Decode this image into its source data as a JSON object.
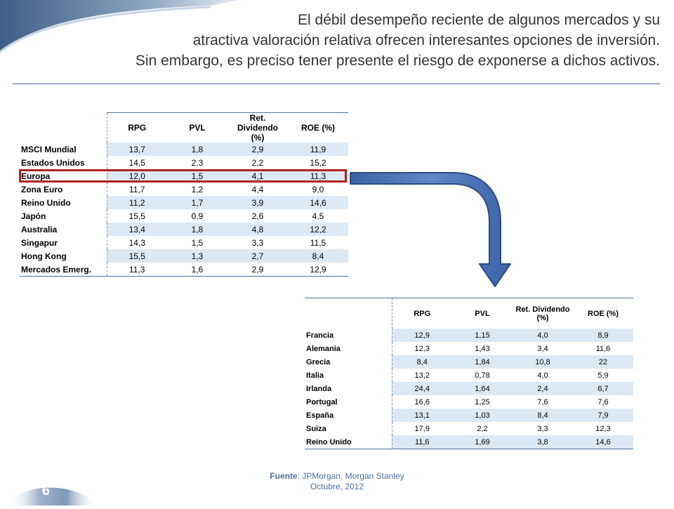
{
  "title": {
    "line1": "El débil desempeño reciente de algunos mercados y su",
    "line2": "atractiva valoración relativa ofrecen interesantes opciones de inversión.",
    "line3": "Sin embargo, es preciso tener presente el riesgo de exponerse a dichos activos."
  },
  "table_markets": {
    "headers": [
      "RPG",
      "PVL",
      "Ret. Dividendo (%)",
      "ROE (%)"
    ],
    "rows": [
      {
        "name": "MSCI Mundial",
        "values": [
          "13,7",
          "1,8",
          "2,9",
          "11,9"
        ]
      },
      {
        "name": "Estados Unidos",
        "values": [
          "14,5",
          "2,3",
          "2,2",
          "15,2"
        ]
      },
      {
        "name": "Europa",
        "values": [
          "12,0",
          "1,5",
          "4,1",
          "11,3"
        ]
      },
      {
        "name": "Zona Euro",
        "values": [
          "11,7",
          "1,2",
          "4,4",
          "9,0"
        ]
      },
      {
        "name": "Reino Unido",
        "values": [
          "11,2",
          "1,7",
          "3,9",
          "14,6"
        ]
      },
      {
        "name": "Japón",
        "values": [
          "15,5",
          "0,9",
          "2,6",
          "4,5"
        ]
      },
      {
        "name": "Australia",
        "values": [
          "13,4",
          "1,8",
          "4,8",
          "12,2"
        ]
      },
      {
        "name": "Singapur",
        "values": [
          "14,3",
          "1,5",
          "3,3",
          "11,5"
        ]
      },
      {
        "name": "Hong Kong",
        "values": [
          "15,5",
          "1,3",
          "2,7",
          "8,4"
        ]
      },
      {
        "name": "Mercados Emerg.",
        "values": [
          "11,3",
          "1,6",
          "2,9",
          "12,9"
        ]
      }
    ]
  },
  "table_europe": {
    "headers": [
      "RPG",
      "PVL",
      "Ret. Dividendo (%)",
      "ROE (%)"
    ],
    "rows": [
      {
        "name": "Francia",
        "values": [
          "12,9",
          "1,15",
          "4,0",
          "8,9"
        ]
      },
      {
        "name": "Alemania",
        "values": [
          "12,3",
          "1,43",
          "3,4",
          "11,6"
        ]
      },
      {
        "name": "Grecia",
        "values": [
          "8,4",
          "1,84",
          "10,8",
          "22"
        ]
      },
      {
        "name": "Italia",
        "values": [
          "13,2",
          "0,78",
          "4,0",
          "5,9"
        ]
      },
      {
        "name": "Irlanda",
        "values": [
          "24,4",
          "1,64",
          "2,4",
          "6,7"
        ]
      },
      {
        "name": "Portugal",
        "values": [
          "16,6",
          "1,25",
          "7,6",
          "7,6"
        ]
      },
      {
        "name": "España",
        "values": [
          "13,1",
          "1,03",
          "8,4",
          "7,9"
        ]
      },
      {
        "name": "Suiza",
        "values": [
          "17,9",
          "2,2",
          "3,3",
          "12,3"
        ]
      },
      {
        "name": "Reino Unido",
        "values": [
          "11,6",
          "1,69",
          "3,8",
          "14,6"
        ]
      }
    ]
  },
  "source": {
    "label": "Fuente",
    "text": ": JPMorgan, Morgan Stanley",
    "date": "Octubre, 2012"
  },
  "page_number": "6",
  "colors": {
    "highlight_border": "#b22222",
    "arrow_fill": "#4a72b8",
    "row_band": "#dbe9f4",
    "swoosh": "#4a6a90"
  }
}
